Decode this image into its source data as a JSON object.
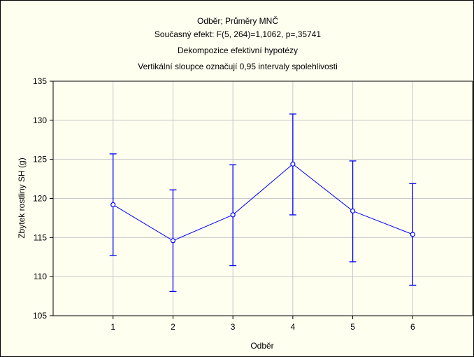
{
  "chart_data": {
    "type": "line",
    "title": "Odběr; Průměry MNČ",
    "subtitle_lines": [
      "Současný efekt: F(5, 264)=1,1062, p=,35741",
      "Dekompozice efektivní hypotézy",
      "Vertikální sloupce označují 0,95 intervaly spolehlivosti"
    ],
    "xlabel": "Odběr",
    "ylabel": "Zbytek rostliny SH (g)",
    "x": [
      1,
      2,
      3,
      4,
      5,
      6
    ],
    "x_tick_labels": [
      "1",
      "2",
      "3",
      "4",
      "5",
      "6"
    ],
    "xlim": [
      0,
      7
    ],
    "ylim": [
      105,
      135
    ],
    "y_ticks": [
      105,
      110,
      115,
      120,
      125,
      130,
      135
    ],
    "grid": true,
    "series": [
      {
        "values": [
          119.2,
          114.6,
          117.9,
          124.4,
          118.4,
          115.4
        ],
        "lower": [
          112.7,
          108.1,
          111.4,
          117.9,
          111.9,
          108.9
        ],
        "upper": [
          125.7,
          121.1,
          124.3,
          130.8,
          124.8,
          121.9
        ],
        "color": "#0000ff"
      }
    ]
  }
}
